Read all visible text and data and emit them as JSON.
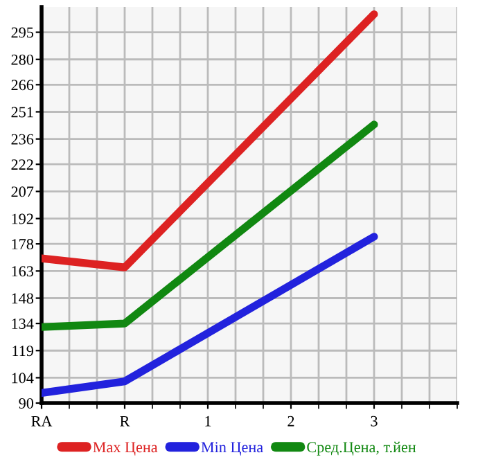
{
  "chart_data": {
    "type": "line",
    "categories": [
      "RA",
      "R",
      "1",
      "2",
      "3"
    ],
    "series": [
      {
        "name": "Max Цена",
        "color": "#dd2222",
        "values": [
          170,
          165,
          null,
          null,
          305
        ]
      },
      {
        "name": "Min Цена",
        "color": "#2222dd",
        "values": [
          95.6,
          102,
          null,
          null,
          182
        ]
      },
      {
        "name": "Сред.Цена, т.йен",
        "color": "#118811",
        "values": [
          132,
          134,
          null,
          null,
          244
        ]
      }
    ],
    "ylim": [
      90,
      309
    ],
    "yticks": [
      90,
      104,
      119,
      134,
      148,
      163,
      178,
      192,
      207,
      222,
      236,
      251,
      266,
      280,
      295
    ],
    "grid": true,
    "legend": "bottom",
    "marker": "none",
    "line_style": "solid"
  }
}
